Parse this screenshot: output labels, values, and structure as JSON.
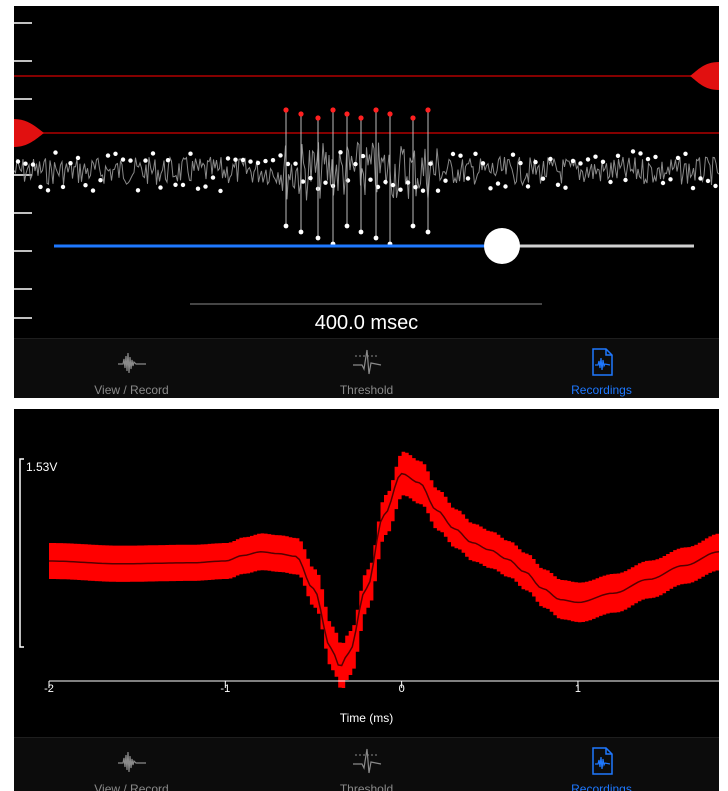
{
  "top_panel": {
    "time_scale_label": "400.0 msec",
    "slider": {
      "fraction": 0.7
    }
  },
  "tabs": [
    {
      "label": "View / Record",
      "icon": "waveform-icon",
      "active": false
    },
    {
      "label": "Threshold",
      "icon": "threshold-spike-icon",
      "active": false
    },
    {
      "label": "Recordings",
      "icon": "recordings-file-icon",
      "active": true
    }
  ],
  "colors": {
    "background": "#000000",
    "threshold_line": "#b10000",
    "slider_track": "#1e78ff",
    "spike_fill": "#ff0000",
    "active_tab": "#1e78ff",
    "inactive_tab": "#8a8a8a"
  },
  "chart_data": {
    "type": "line",
    "xlabel": "Time (ms)",
    "x_ticks": [
      "-2",
      "-1",
      "0",
      "1"
    ],
    "xlim": [
      -2,
      1.8
    ],
    "amplitude_label": "1.53V",
    "series": [
      {
        "x": [
          -2.0,
          -1.6,
          -1.2,
          -1.0,
          -0.9,
          -0.8,
          -0.7,
          -0.6,
          -0.5,
          -0.4,
          -0.35,
          -0.3,
          -0.2,
          -0.1,
          0.0,
          0.1,
          0.2,
          0.3,
          0.4,
          0.5,
          0.6,
          0.7,
          0.8,
          0.9,
          1.0,
          1.2,
          1.4,
          1.6,
          1.8
        ],
        "y": [
          0.0,
          -0.03,
          -0.02,
          0.0,
          0.06,
          0.1,
          0.08,
          0.05,
          -0.3,
          -0.95,
          -1.15,
          -1.0,
          -0.3,
          0.5,
          0.95,
          0.85,
          0.55,
          0.35,
          0.2,
          0.12,
          0.02,
          -0.12,
          -0.3,
          -0.42,
          -0.45,
          -0.35,
          -0.2,
          -0.05,
          0.1
        ]
      }
    ]
  }
}
